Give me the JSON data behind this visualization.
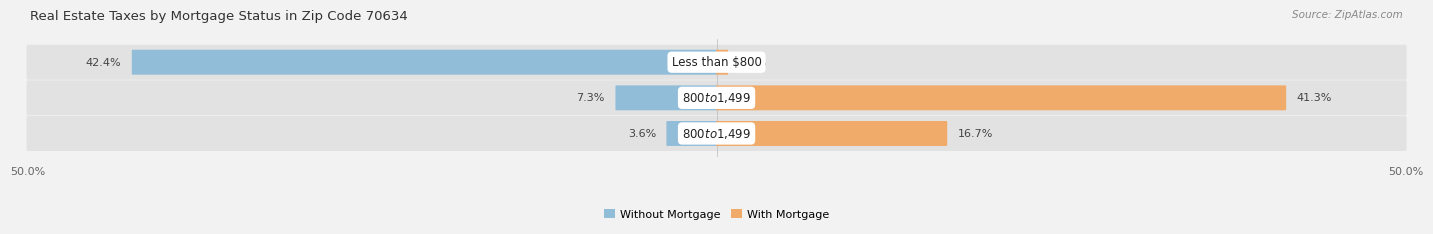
{
  "title": "Real Estate Taxes by Mortgage Status in Zip Code 70634",
  "source": "Source: ZipAtlas.com",
  "rows": [
    {
      "label": "Less than $800",
      "without_mortgage": 42.4,
      "with_mortgage": 0.8
    },
    {
      "label": "$800 to $1,499",
      "without_mortgage": 7.3,
      "with_mortgage": 41.3
    },
    {
      "label": "$800 to $1,499",
      "without_mortgage": 3.6,
      "with_mortgage": 16.7
    }
  ],
  "xlim": [
    -50,
    50
  ],
  "xtick_left": -50.0,
  "xtick_right": 50.0,
  "color_without": "#92bdd8",
  "color_with": "#f0aa6a",
  "bar_height": 0.62,
  "background_color": "#f2f2f2",
  "bar_bg_color": "#e2e2e2",
  "title_fontsize": 9.5,
  "source_fontsize": 7.5,
  "label_fontsize": 8.5,
  "value_fontsize": 8,
  "legend_fontsize": 8,
  "axis_label_fontsize": 8
}
